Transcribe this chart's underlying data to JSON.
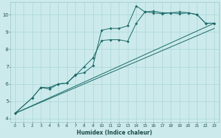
{
  "xlabel": "Humidex (Indice chaleur)",
  "bg_color": "#cceaeb",
  "grid_color": "#a8d5d6",
  "line_color": "#1e6b6b",
  "xlim": [
    -0.5,
    23.5
  ],
  "ylim": [
    3.8,
    10.7
  ],
  "yticks": [
    4,
    5,
    6,
    7,
    8,
    9,
    10
  ],
  "xticks": [
    0,
    1,
    2,
    3,
    4,
    5,
    6,
    7,
    8,
    9,
    10,
    11,
    12,
    13,
    14,
    15,
    16,
    17,
    18,
    19,
    20,
    21,
    22,
    23
  ],
  "curve1_x": [
    0,
    2,
    3,
    4,
    5,
    6,
    7,
    8,
    9,
    10,
    11,
    12,
    13,
    14,
    15,
    16,
    17,
    18,
    19,
    20,
    21,
    22,
    23
  ],
  "curve1_y": [
    4.3,
    5.2,
    5.8,
    5.7,
    6.0,
    6.05,
    6.55,
    6.65,
    7.05,
    9.1,
    9.2,
    9.2,
    9.35,
    10.5,
    10.15,
    10.2,
    10.1,
    10.1,
    10.15,
    10.1,
    10.0,
    9.5,
    9.5
  ],
  "curve2_x": [
    0,
    2,
    3,
    4,
    5,
    6,
    7,
    8,
    9,
    10,
    11,
    12,
    13,
    14,
    15,
    16,
    17,
    18,
    19,
    20,
    21,
    22,
    23
  ],
  "curve2_y": [
    4.3,
    5.2,
    5.8,
    5.8,
    6.0,
    6.05,
    6.5,
    7.0,
    7.5,
    8.5,
    8.55,
    8.55,
    8.45,
    9.5,
    10.15,
    10.1,
    10.05,
    10.1,
    10.05,
    10.1,
    10.0,
    9.5,
    9.5
  ],
  "trend1_x": [
    0,
    23
  ],
  "trend1_y": [
    4.3,
    9.5
  ],
  "trend2_x": [
    0,
    23
  ],
  "trend2_y": [
    4.3,
    9.2
  ],
  "xlabel_fontsize": 5.5,
  "tick_fontsize": 4.8,
  "lw": 0.75,
  "ms": 1.8
}
